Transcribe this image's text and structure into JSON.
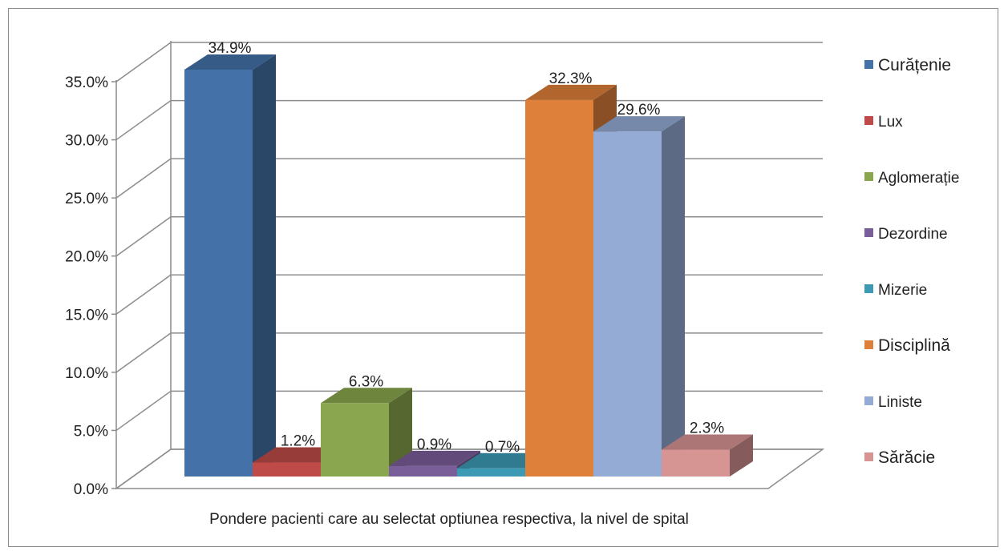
{
  "chart_data": {
    "type": "bar",
    "title": "",
    "xlabel": "Pondere pacienti care au selectat optiunea respectiva, la nivel de spital",
    "ylabel": "",
    "ylim": [
      0,
      35
    ],
    "yticks": [
      "0.0%",
      "5.0%",
      "10.0%",
      "15.0%",
      "20.0%",
      "25.0%",
      "30.0%",
      "35.0%"
    ],
    "categories": [
      "Pondere pacienti care au selectat optiunea respectiva, la nivel de spital"
    ],
    "grid": true,
    "legend": "right",
    "series": [
      {
        "name": "Curățenie",
        "values": [
          34.9
        ],
        "label": "34.9%",
        "color": "#4472A8"
      },
      {
        "name": "Lux",
        "values": [
          1.2
        ],
        "label": "1.2%",
        "color": "#BE4B48"
      },
      {
        "name": "Aglomerație",
        "values": [
          6.3
        ],
        "label": "6.3%",
        "color": "#8AA64E"
      },
      {
        "name": "Dezordine",
        "values": [
          0.9
        ],
        "label": "0.9%",
        "color": "#7A5E9A"
      },
      {
        "name": "Mizerie",
        "values": [
          0.7
        ],
        "label": "0.7%",
        "color": "#3D9AB5"
      },
      {
        "name": "Disciplină",
        "values": [
          32.3
        ],
        "label": "32.3%",
        "color": "#DE7F3A"
      },
      {
        "name": "Liniste",
        "values": [
          29.6
        ],
        "label": "29.6%",
        "color": "#94ABD5"
      },
      {
        "name": "Sărăcie",
        "values": [
          2.3
        ],
        "label": "2.3%",
        "color": "#D69492"
      }
    ]
  }
}
